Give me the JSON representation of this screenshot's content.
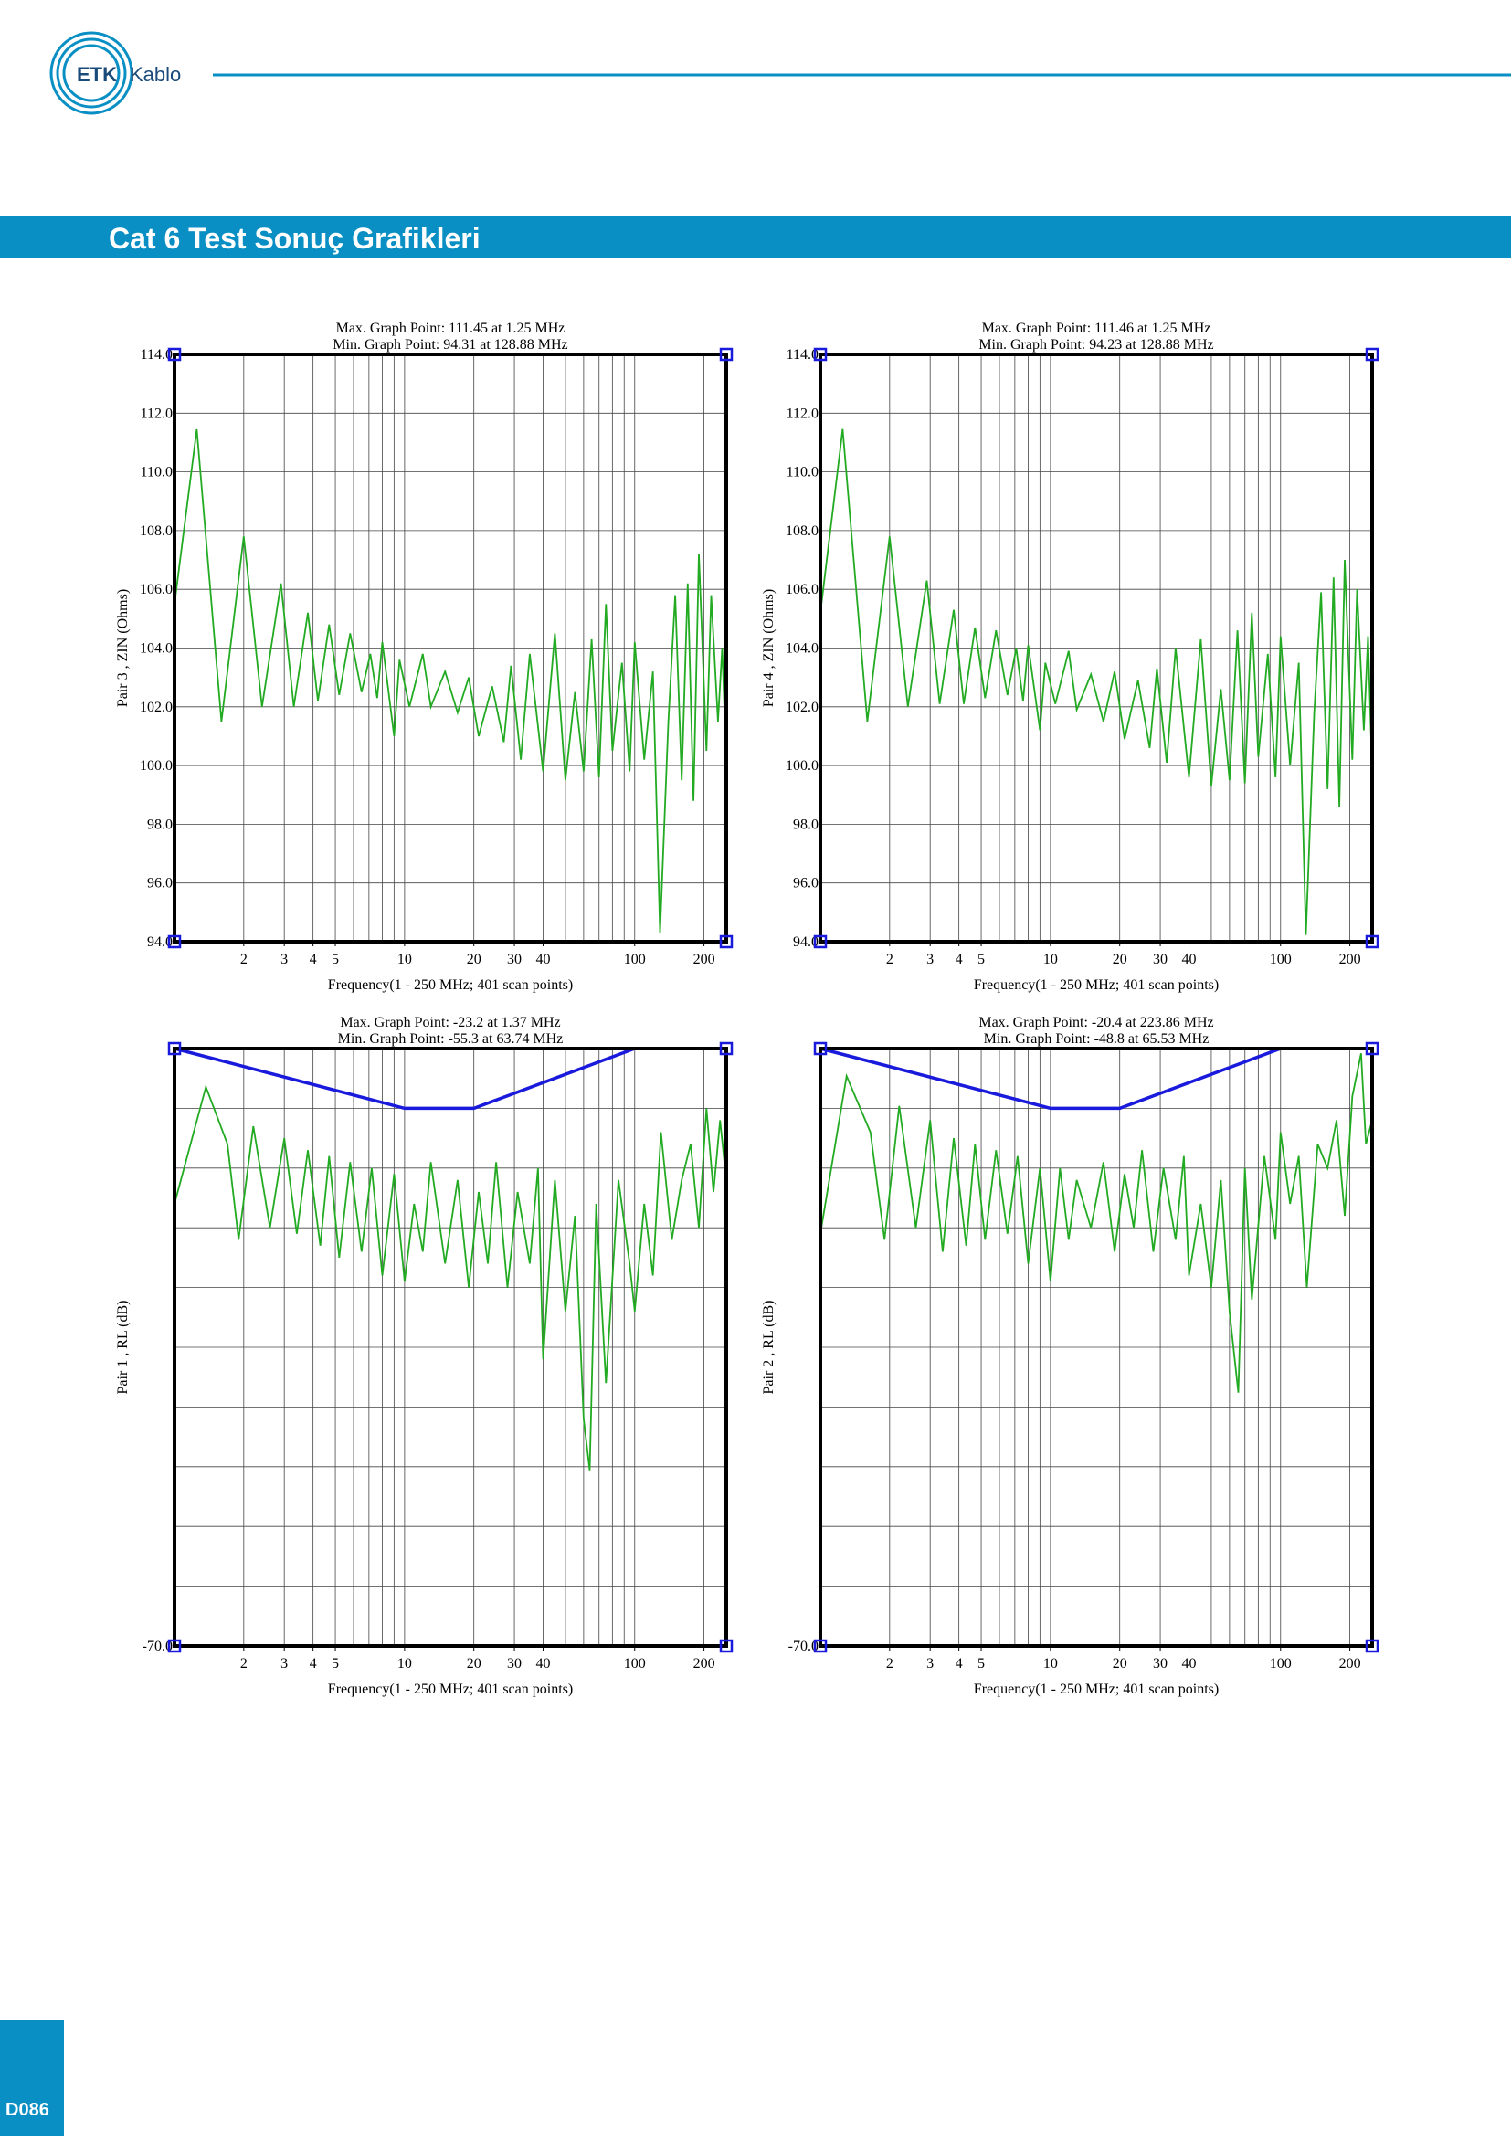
{
  "header": {
    "logo": "ETK",
    "brand": "Kablo"
  },
  "title": "Cat 6 Test Sonuç Grafikleri",
  "footer": {
    "page": "D086"
  },
  "chart_data": [
    {
      "type": "line",
      "title": "Max. Graph Point: 111.45 at 1.25 MHz",
      "subtitle": "Min. Graph Point: 94.31 at 128.88 MHz",
      "ylabel": "Pair 3 , ZIN (Ohms)",
      "xlabel": "Frequency(1 - 250 MHz; 401 scan points)",
      "xscale": "log",
      "xlim": [
        1,
        250
      ],
      "ylim": [
        94,
        114
      ],
      "grid": true,
      "xticks": [
        2,
        3,
        4,
        5,
        10,
        20,
        30,
        40,
        100,
        200
      ],
      "xgrid": [
        2,
        3,
        4,
        5,
        6,
        7,
        8,
        9,
        10,
        20,
        30,
        40,
        50,
        60,
        70,
        80,
        90,
        100,
        200
      ],
      "yticks": [
        {
          "value": 94,
          "label": "94.0"
        },
        {
          "value": 96,
          "label": "96.0"
        },
        {
          "value": 98,
          "label": "98.0"
        },
        {
          "value": 100,
          "label": "100.0"
        },
        {
          "value": 102,
          "label": "102.0"
        },
        {
          "value": 104,
          "label": "104.0"
        },
        {
          "value": 106,
          "label": "106.0"
        },
        {
          "value": 108,
          "label": "108.0"
        },
        {
          "value": 110,
          "label": "110.0"
        },
        {
          "value": 112,
          "label": "112.0"
        },
        {
          "value": 114,
          "label": "114.0"
        }
      ],
      "series": [
        {
          "color": "#1a1adc",
          "x": [
            1,
            250
          ],
          "values": [
            114,
            114
          ]
        },
        {
          "color": "#1a1adc",
          "x": [
            1,
            250
          ],
          "values": [
            94,
            94
          ]
        },
        {
          "color": "#22aa22",
          "x": [
            1,
            1.25,
            1.6,
            2.0,
            2.4,
            2.9,
            3.3,
            3.8,
            4.2,
            4.7,
            5.2,
            5.8,
            6.5,
            7.1,
            7.6,
            8,
            9,
            9.5,
            10.5,
            12,
            13,
            15,
            17,
            19,
            21,
            24,
            27,
            29,
            32,
            35,
            40,
            45,
            50,
            55,
            60,
            65,
            70,
            75,
            80,
            88,
            95,
            100,
            110,
            120,
            128.88,
            140,
            150,
            160,
            170,
            180,
            190,
            205,
            215,
            230,
            240,
            250
          ],
          "values": [
            105.5,
            111.45,
            101.5,
            107.8,
            102,
            106.2,
            102,
            105.2,
            102.2,
            104.8,
            102.4,
            104.5,
            102.5,
            103.8,
            102.3,
            104.2,
            101,
            103.6,
            102,
            103.8,
            102,
            103.2,
            101.8,
            103,
            101,
            102.7,
            100.8,
            103.4,
            100.2,
            103.8,
            99.8,
            104.5,
            99.5,
            102.5,
            99.8,
            104.3,
            99.6,
            105.5,
            100.5,
            103.5,
            99.8,
            104.2,
            100.2,
            103.2,
            94.31,
            101.5,
            105.8,
            99.5,
            106.2,
            98.8,
            107.2,
            100.5,
            105.8,
            101.5,
            104,
            100.2
          ]
        }
      ]
    },
    {
      "type": "line",
      "title": "Max. Graph Point: 111.46 at 1.25 MHz",
      "subtitle": "Min. Graph Point: 94.23 at 128.88 MHz",
      "ylabel": "Pair 4 , ZIN (Ohms)",
      "xlabel": "Frequency(1 - 250 MHz; 401 scan points)",
      "xscale": "log",
      "xlim": [
        1,
        250
      ],
      "ylim": [
        94,
        114
      ],
      "grid": true,
      "xticks": [
        2,
        3,
        4,
        5,
        10,
        20,
        30,
        40,
        100,
        200
      ],
      "xgrid": [
        2,
        3,
        4,
        5,
        6,
        7,
        8,
        9,
        10,
        20,
        30,
        40,
        50,
        60,
        70,
        80,
        90,
        100,
        200
      ],
      "yticks": [
        {
          "value": 94,
          "label": "94.0"
        },
        {
          "value": 96,
          "label": "96.0"
        },
        {
          "value": 98,
          "label": "98.0"
        },
        {
          "value": 100,
          "label": "100.0"
        },
        {
          "value": 102,
          "label": "102.0"
        },
        {
          "value": 104,
          "label": "104.0"
        },
        {
          "value": 106,
          "label": "106.0"
        },
        {
          "value": 108,
          "label": "108.0"
        },
        {
          "value": 110,
          "label": "110.0"
        },
        {
          "value": 112,
          "label": "112.0"
        },
        {
          "value": 114,
          "label": "114.0"
        }
      ],
      "series": [
        {
          "color": "#1a1adc",
          "x": [
            1,
            250
          ],
          "values": [
            114,
            114
          ]
        },
        {
          "color": "#1a1adc",
          "x": [
            1,
            250
          ],
          "values": [
            94,
            94
          ]
        },
        {
          "color": "#22aa22",
          "x": [
            1,
            1.25,
            1.6,
            2.0,
            2.4,
            2.9,
            3.3,
            3.8,
            4.2,
            4.7,
            5.2,
            5.8,
            6.5,
            7.1,
            7.6,
            8,
            9,
            9.5,
            10.5,
            12,
            13,
            15,
            17,
            19,
            21,
            24,
            27,
            29,
            32,
            35,
            40,
            45,
            50,
            55,
            60,
            65,
            70,
            75,
            80,
            88,
            95,
            100,
            110,
            120,
            128.88,
            140,
            150,
            160,
            170,
            180,
            190,
            205,
            215,
            230,
            240,
            250
          ],
          "values": [
            105.2,
            111.46,
            101.5,
            107.8,
            102,
            106.3,
            102.1,
            105.3,
            102.1,
            104.7,
            102.3,
            104.6,
            102.4,
            104,
            102.2,
            104.1,
            101.2,
            103.5,
            102.1,
            103.9,
            101.9,
            103.1,
            101.5,
            103.2,
            100.9,
            102.9,
            100.6,
            103.3,
            100.1,
            104,
            99.6,
            104.3,
            99.3,
            102.6,
            99.5,
            104.6,
            99.4,
            105.2,
            100.3,
            103.8,
            99.6,
            104.4,
            100,
            103.5,
            94.23,
            101.8,
            105.9,
            99.2,
            106.4,
            98.6,
            107,
            100.2,
            106,
            101.2,
            104.4,
            99.8
          ]
        }
      ]
    },
    {
      "type": "line",
      "title": "Max. Graph Point: -23.2 at 1.37 MHz",
      "subtitle": "Min. Graph Point: -55.3 at 63.74 MHz",
      "ylabel": "Pair 1 , RL (dB)",
      "xlabel": "Frequency(1 - 250 MHz; 401 scan points)",
      "xscale": "log",
      "xlim": [
        1,
        250
      ],
      "ylim": [
        -70,
        -20
      ],
      "grid": true,
      "xticks": [
        2,
        3,
        4,
        5,
        10,
        20,
        30,
        40,
        100,
        200
      ],
      "xgrid": [
        2,
        3,
        4,
        5,
        6,
        7,
        8,
        9,
        10,
        20,
        30,
        40,
        50,
        60,
        70,
        80,
        90,
        100,
        200
      ],
      "yticks": [
        {
          "value": -70,
          "label": "-70.0"
        }
      ],
      "ygrid": [
        -25,
        -30,
        -35,
        -40,
        -45,
        -50,
        -55,
        -60,
        -65
      ],
      "series": [
        {
          "color": "#1a1adc",
          "x": [
            1,
            10,
            20,
            100,
            250
          ],
          "values": [
            -20,
            -25,
            -25,
            -20,
            -20
          ]
        },
        {
          "color": "#22aa22",
          "x": [
            1,
            1.37,
            1.7,
            1.9,
            2.2,
            2.6,
            3.0,
            3.4,
            3.8,
            4.3,
            4.7,
            5.2,
            5.8,
            6.5,
            7.2,
            8,
            9,
            10,
            11,
            12,
            13,
            15,
            17,
            19,
            21,
            23,
            25,
            28,
            31,
            35,
            38,
            40,
            45,
            50,
            55,
            60,
            63.74,
            68,
            75,
            85,
            95,
            100,
            110,
            120,
            130,
            145,
            160,
            175,
            190,
            205,
            220,
            235,
            250
          ],
          "values": [
            -33,
            -23.2,
            -28,
            -36,
            -26.5,
            -35,
            -27.5,
            -35.5,
            -28.5,
            -36.5,
            -29,
            -37.5,
            -29.5,
            -37,
            -30,
            -39,
            -30.5,
            -39.5,
            -33,
            -37,
            -29.5,
            -38,
            -31,
            -40,
            -32,
            -38,
            -29.5,
            -40,
            -32,
            -38,
            -30,
            -46,
            -31,
            -42,
            -34,
            -51,
            -55.3,
            -33,
            -48,
            -31,
            -38,
            -42,
            -33,
            -39,
            -27,
            -36,
            -31,
            -28,
            -35,
            -25,
            -32,
            -26,
            -31
          ]
        }
      ]
    },
    {
      "type": "line",
      "title": "Max. Graph Point: -20.4 at 223.86 MHz",
      "subtitle": "Min. Graph Point: -48.8 at 65.53 MHz",
      "ylabel": "Pair 2 , RL (dB)",
      "xlabel": "Frequency(1 - 250 MHz; 401 scan points)",
      "xscale": "log",
      "xlim": [
        1,
        250
      ],
      "ylim": [
        -70,
        -20
      ],
      "grid": true,
      "xticks": [
        2,
        3,
        4,
        5,
        10,
        20,
        30,
        40,
        100,
        200
      ],
      "xgrid": [
        2,
        3,
        4,
        5,
        6,
        7,
        8,
        9,
        10,
        20,
        30,
        40,
        50,
        60,
        70,
        80,
        90,
        100,
        200
      ],
      "yticks": [
        {
          "value": -70,
          "label": "-70.0"
        }
      ],
      "ygrid": [
        -25,
        -30,
        -35,
        -40,
        -45,
        -50,
        -55,
        -60,
        -65
      ],
      "series": [
        {
          "color": "#1a1adc",
          "x": [
            1,
            10,
            20,
            100,
            250
          ],
          "values": [
            -20,
            -25,
            -25,
            -20,
            -20
          ]
        },
        {
          "color": "#22aa22",
          "x": [
            1,
            1.3,
            1.65,
            1.9,
            2.2,
            2.6,
            3.0,
            3.4,
            3.8,
            4.3,
            4.7,
            5.2,
            5.8,
            6.5,
            7.2,
            8,
            9,
            10,
            11,
            12,
            13,
            15,
            17,
            19,
            21,
            23,
            25,
            28,
            31,
            35,
            38,
            40,
            45,
            50,
            55,
            60,
            65.53,
            70,
            75,
            85,
            95,
            100,
            110,
            120,
            130,
            145,
            160,
            175,
            190,
            205,
            223.86,
            235,
            250
          ],
          "values": [
            -35.5,
            -22.3,
            -27,
            -36,
            -24.8,
            -35,
            -26,
            -37,
            -27.5,
            -36.5,
            -28,
            -36,
            -28.5,
            -35.5,
            -29,
            -38,
            -30,
            -39.5,
            -30,
            -36,
            -31,
            -35,
            -29.5,
            -37,
            -30.5,
            -35,
            -28.5,
            -37,
            -30,
            -36,
            -29,
            -39,
            -33,
            -40,
            -31,
            -42,
            -48.8,
            -30,
            -41,
            -29,
            -36,
            -27,
            -33,
            -29,
            -40,
            -28,
            -30,
            -26,
            -34,
            -24,
            -20.4,
            -28,
            -26
          ]
        }
      ]
    }
  ]
}
